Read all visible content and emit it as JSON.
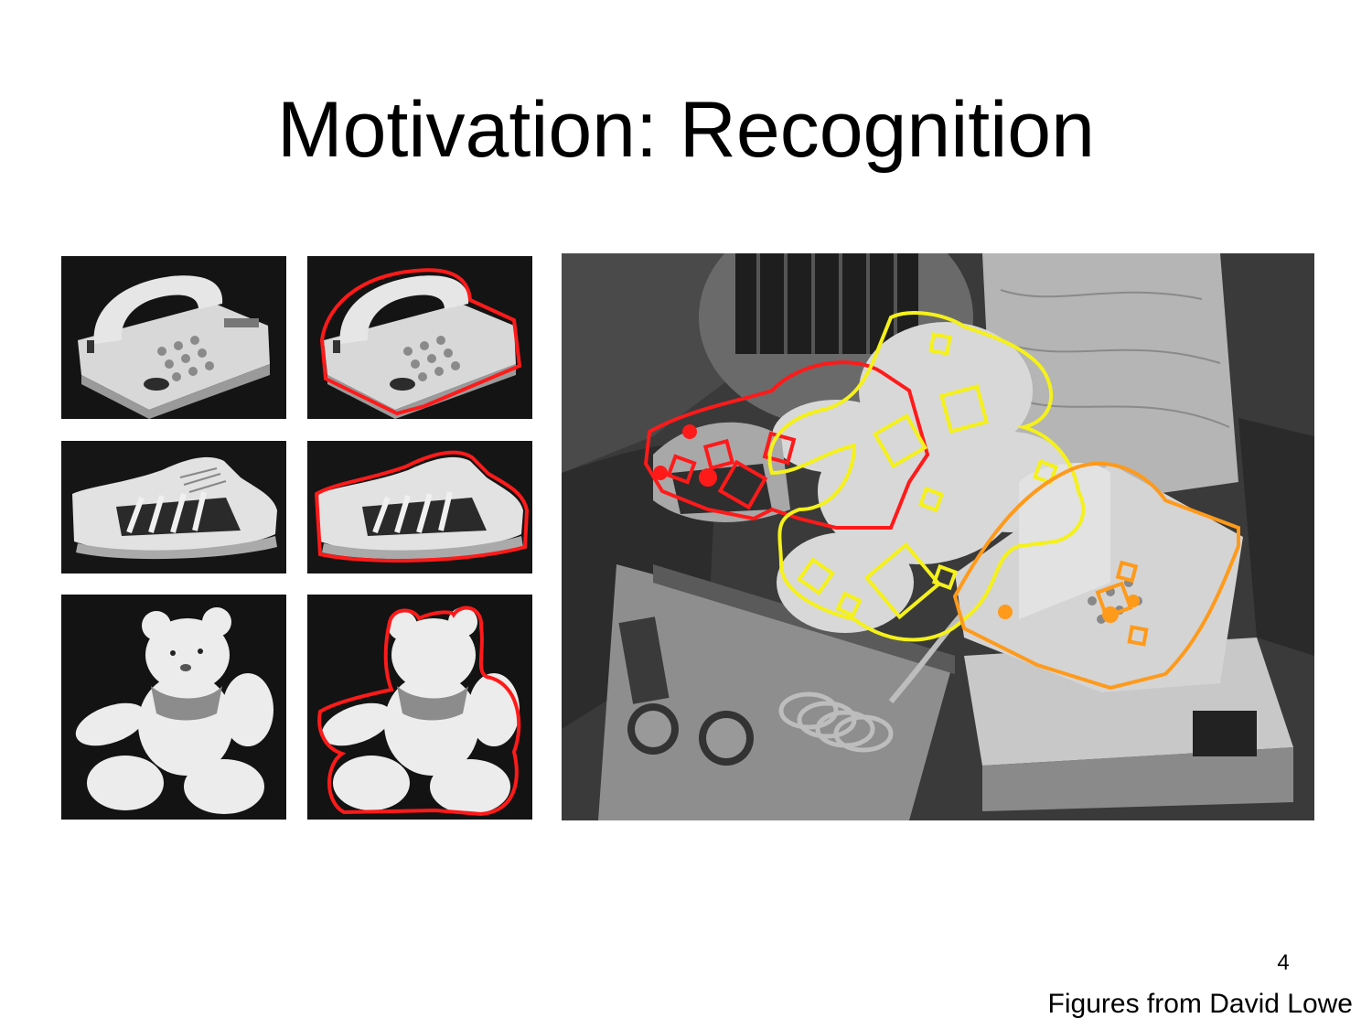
{
  "slide": {
    "title": "Motivation: Recognition",
    "page_number": "4",
    "credit": "Figures from David Lowe"
  },
  "figure": {
    "models": [
      "telephone",
      "sneaker",
      "teddy-bear"
    ],
    "outline_color": "#ff1a1a",
    "scene_detections": [
      {
        "object": "telephone",
        "color": "#ff9a1a"
      },
      {
        "object": "sneaker",
        "color": "#ff1a1a"
      },
      {
        "object": "teddy-bear",
        "color": "#f5f11a"
      }
    ]
  }
}
